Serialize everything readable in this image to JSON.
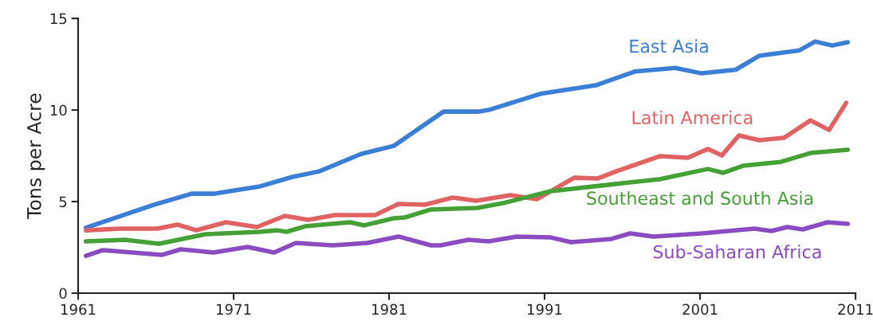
{
  "chart_data": {
    "type": "line",
    "ylabel": "Tons per Acre",
    "xlim": [
      1961,
      2011
    ],
    "ylim": [
      0,
      15
    ],
    "xticks": [
      1961,
      1971,
      1981,
      1991,
      2001,
      2011
    ],
    "yticks": [
      0,
      5,
      10,
      15
    ],
    "grid": false,
    "legend": false,
    "marker": "none",
    "line_style": "solid",
    "series": [
      {
        "name": "East Asia",
        "color": "#3a7fd5",
        "x": [
          1961.5,
          1965.9,
          1968.3,
          1969.7,
          1972.7,
          1974.8,
          1976.5,
          1979.2,
          1981.3,
          1984.5,
          1986.7,
          1987.4,
          1990.8,
          1994.3,
          1996.8,
          1999.4,
          2001.1,
          2003.3,
          2004.8,
          2007.4,
          2008.4,
          2009.5,
          2010.5
        ],
        "values": [
          3.57,
          4.83,
          5.43,
          5.43,
          5.83,
          6.35,
          6.65,
          7.6,
          8.04,
          9.91,
          9.91,
          10.0,
          10.9,
          11.35,
          12.1,
          12.3,
          12.0,
          12.2,
          12.96,
          13.26,
          13.74,
          13.52,
          13.7
        ]
      },
      {
        "name": "Latin America",
        "color": "#e06262",
        "x": [
          1961.5,
          1963.7,
          1966.1,
          1967.4,
          1968.6,
          1970.5,
          1972.5,
          1974.3,
          1975.8,
          1977.5,
          1980.1,
          1981.6,
          1983.3,
          1985.1,
          1986.6,
          1988.8,
          1990.5,
          1992.9,
          1994.4,
          1995.6,
          1998.4,
          2000.2,
          2001.5,
          2002.4,
          2003.5,
          2004.8,
          2006.4,
          2008.1,
          2009.3,
          2010.4
        ],
        "values": [
          3.43,
          3.52,
          3.52,
          3.74,
          3.43,
          3.87,
          3.61,
          4.22,
          4.0,
          4.26,
          4.26,
          4.87,
          4.83,
          5.22,
          5.04,
          5.35,
          5.13,
          6.3,
          6.26,
          6.65,
          7.48,
          7.39,
          7.87,
          7.52,
          8.61,
          8.35,
          8.48,
          9.43,
          8.91,
          10.39
        ]
      },
      {
        "name": "Southeast and South Asia",
        "color": "#45a035",
        "x": [
          1961.5,
          1964.0,
          1966.2,
          1969.2,
          1972.7,
          1973.8,
          1974.4,
          1975.6,
          1978.5,
          1979.4,
          1981.3,
          1982.0,
          1983.7,
          1986.7,
          1988.3,
          1991.4,
          1996.0,
          1998.4,
          2001.5,
          2002.5,
          2003.8,
          2006.2,
          2008.1,
          2010.5
        ],
        "values": [
          2.83,
          2.91,
          2.7,
          3.22,
          3.35,
          3.43,
          3.35,
          3.65,
          3.87,
          3.7,
          4.09,
          4.13,
          4.57,
          4.65,
          4.91,
          5.57,
          6.0,
          6.22,
          6.78,
          6.57,
          6.96,
          7.17,
          7.65,
          7.83
        ]
      },
      {
        "name": "Sub-Saharan Africa",
        "color": "#8a4cc0",
        "x": [
          1961.5,
          1962.6,
          1964.5,
          1966.4,
          1967.6,
          1969.7,
          1971.9,
          1973.6,
          1975.0,
          1977.4,
          1979.6,
          1981.6,
          1983.7,
          1984.3,
          1986.1,
          1987.4,
          1989.2,
          1991.4,
          1992.7,
          1995.3,
          1996.5,
          1998.0,
          2001.1,
          2004.5,
          2005.6,
          2006.6,
          2007.6,
          2009.2,
          2010.5
        ],
        "values": [
          2.04,
          2.35,
          2.22,
          2.09,
          2.39,
          2.22,
          2.52,
          2.22,
          2.74,
          2.61,
          2.74,
          3.09,
          2.61,
          2.61,
          2.91,
          2.83,
          3.09,
          3.04,
          2.78,
          2.96,
          3.26,
          3.09,
          3.26,
          3.52,
          3.39,
          3.61,
          3.48,
          3.87,
          3.78
        ]
      }
    ]
  }
}
